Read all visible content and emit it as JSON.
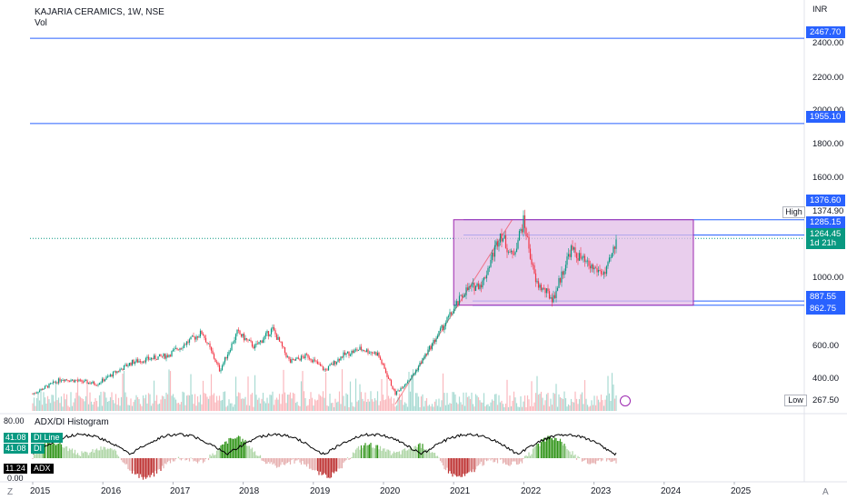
{
  "header": {
    "symbol_title": "KAJARIA CERAMICS, 1W, NSE",
    "volume_label": "Vol",
    "currency": "INR"
  },
  "price_axis": {
    "ticks": [
      "2400.00",
      "2200.00",
      "2000.00",
      "1800.00",
      "1600.00",
      "1000.00",
      "600.00",
      "400.00"
    ],
    "labels": [
      {
        "text": "2467.70",
        "color": "#2962ff"
      },
      {
        "text": "1955.10",
        "color": "#2962ff"
      },
      {
        "text": "1376.60",
        "color": "#2962ff"
      },
      {
        "text": "1285.15",
        "color": "#2962ff"
      },
      {
        "text": "1264.45",
        "color": "#089981"
      },
      {
        "text": "1d 21h",
        "color": "#089981"
      },
      {
        "text": "887.55",
        "color": "#2962ff"
      },
      {
        "text": "862.75",
        "color": "#2962ff"
      }
    ],
    "high_label": "High",
    "high_value": "1374.90",
    "low_label": "Low",
    "low_value": "267.50"
  },
  "indicator": {
    "name": "ADX/DI Histogram",
    "top_value": "80.00",
    "bottom_value": "0.00",
    "badges": [
      {
        "value": "41.08",
        "name": "DI Line",
        "color": "#089981"
      },
      {
        "value": "41.08",
        "name": "DI",
        "color": "#089981"
      },
      {
        "value": "11.24",
        "name": "ADX",
        "color": "#000000"
      }
    ]
  },
  "time_axis": {
    "labels": [
      "2015",
      "2016",
      "2017",
      "2018",
      "2019",
      "2020",
      "2021",
      "2022",
      "2023",
      "2024",
      "2025"
    ]
  },
  "footer": {
    "left_icon_letter": "Z",
    "right_icon_letter": "A"
  },
  "colors": {
    "up": "#089981",
    "down": "#f23645",
    "horizontal_line": "#2962ff",
    "box_fill": "#e1bee7",
    "box_border": "#9c27b0",
    "adx_line": "#000000",
    "hist_up": "#1b8a00",
    "hist_down": "#b71c1c"
  },
  "chart_data": {
    "type": "candlestick",
    "title": "KAJARIA CERAMICS, 1W, NSE",
    "x": [
      "2015",
      "2016",
      "2017",
      "2018",
      "2019",
      "2020",
      "2021",
      "2022",
      "2023",
      "2024",
      "2025"
    ],
    "price_series_close": [
      {
        "date": "2015-01",
        "close": 330
      },
      {
        "date": "2015-06",
        "close": 420
      },
      {
        "date": "2015-12",
        "close": 390
      },
      {
        "date": "2016-06",
        "close": 520
      },
      {
        "date": "2016-12",
        "close": 560
      },
      {
        "date": "2017-06",
        "close": 700
      },
      {
        "date": "2017-09",
        "close": 470
      },
      {
        "date": "2017-12",
        "close": 700
      },
      {
        "date": "2018-03",
        "close": 610
      },
      {
        "date": "2018-06",
        "close": 720
      },
      {
        "date": "2018-09",
        "close": 520
      },
      {
        "date": "2018-12",
        "close": 560
      },
      {
        "date": "2019-03",
        "close": 470
      },
      {
        "date": "2019-06",
        "close": 560
      },
      {
        "date": "2019-09",
        "close": 600
      },
      {
        "date": "2019-12",
        "close": 570
      },
      {
        "date": "2020-03",
        "close": 330
      },
      {
        "date": "2020-06",
        "close": 440
      },
      {
        "date": "2020-12",
        "close": 780
      },
      {
        "date": "2021-03",
        "close": 950
      },
      {
        "date": "2021-06",
        "close": 1000
      },
      {
        "date": "2021-09",
        "close": 1300
      },
      {
        "date": "2021-11",
        "close": 1150
      },
      {
        "date": "2022-01",
        "close": 1370
      },
      {
        "date": "2022-03",
        "close": 1000
      },
      {
        "date": "2022-06",
        "close": 900
      },
      {
        "date": "2022-09",
        "close": 1200
      },
      {
        "date": "2022-12",
        "close": 1100
      },
      {
        "date": "2023-03",
        "close": 1050
      },
      {
        "date": "2023-05",
        "close": 1264.45
      }
    ],
    "horizontal_levels": [
      2467.7,
      1955.1,
      1376.6,
      1285.15,
      887.55,
      862.75
    ],
    "high": 1374.9,
    "low": 267.5,
    "ylim": [
      0,
      2550
    ],
    "adx_last": 11.24,
    "di_last": 41.08,
    "grid": false
  }
}
